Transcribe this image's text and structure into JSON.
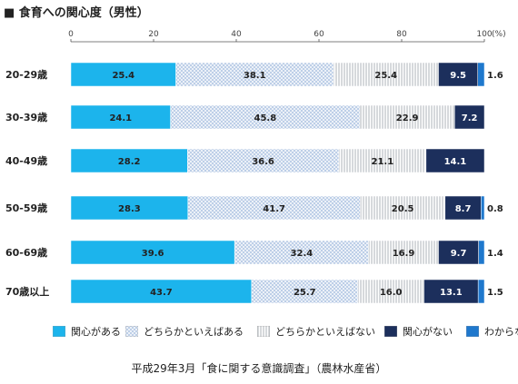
{
  "title": "■ 食育への関心度（男性）",
  "source": "平成29年3月「食に関する意識調査」（農林水産省）",
  "chart_data": {
    "type": "bar",
    "orientation": "horizontal",
    "stacked": true,
    "axis_unit": "(%)",
    "xlim": [
      0,
      100
    ],
    "xticks": [
      0,
      20,
      40,
      60,
      80,
      100
    ],
    "gridlines": false,
    "legend_position": "bottom",
    "categories": [
      "20-29歳",
      "30-39歳",
      "40-49歳",
      "50-59歳",
      "60-69歳",
      "70歳以上"
    ],
    "series": [
      {
        "name": "関心がある",
        "values": [
          25.4,
          24.1,
          28.2,
          28.3,
          39.6,
          43.7
        ],
        "color": "#1cb4ec",
        "pattern": "solid"
      },
      {
        "name": "どちらかといえばある",
        "values": [
          38.1,
          45.8,
          36.6,
          41.7,
          32.4,
          25.7
        ],
        "color": "#b4c8e4",
        "pattern": "crosshatch"
      },
      {
        "name": "どちらかといえばない",
        "values": [
          25.4,
          22.9,
          21.1,
          20.5,
          16.9,
          16.0
        ],
        "color": "#ececec",
        "pattern": "vertical-lines"
      },
      {
        "name": "関心がない",
        "values": [
          9.5,
          7.2,
          14.1,
          8.7,
          9.7,
          13.1
        ],
        "color": "#1c2f5c",
        "pattern": "solid"
      },
      {
        "name": "わからない",
        "values": [
          1.6,
          null,
          null,
          0.8,
          1.4,
          1.5
        ],
        "color": "#1f78cd",
        "pattern": "solid"
      }
    ]
  }
}
